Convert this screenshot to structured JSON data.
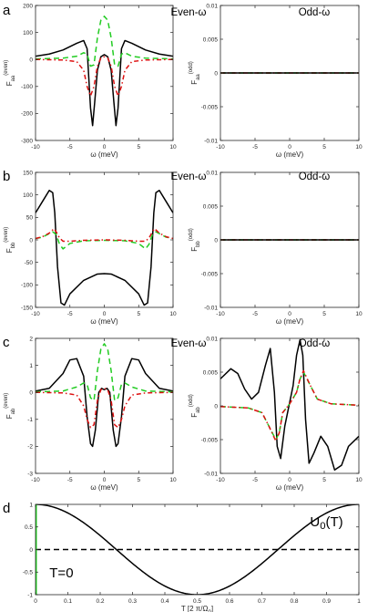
{
  "figure": {
    "panel_letters": [
      "a",
      "b",
      "c",
      "d"
    ],
    "colors": {
      "black": "#000000",
      "green": "#22cc22",
      "red": "#dd1111",
      "green_t0": "#22dd22"
    }
  },
  "chart_data": [
    {
      "id": "a-even",
      "letter": "a",
      "type": "line",
      "title": "Even-ω",
      "ylabel": "F_aa^(even)",
      "xlabel": "ω (meV)",
      "xlim": [
        -10,
        10
      ],
      "ylim": [
        -300,
        200
      ],
      "xticks": [
        -10,
        -5,
        0,
        5,
        10
      ],
      "yticks": [
        -300,
        -200,
        -100,
        0,
        100,
        200
      ],
      "ytick_labels": [
        "-300",
        "-200",
        "-100",
        "0",
        "100",
        "200"
      ],
      "series": [
        {
          "color": "#000000",
          "style": "solid",
          "x": [
            -10,
            -8,
            -6,
            -4,
            -3,
            -2.5,
            -2,
            -1.7,
            -1.4,
            -1,
            -0.5,
            0,
            0.5,
            1,
            1.4,
            1.7,
            2,
            2.5,
            3,
            4,
            6,
            8,
            10
          ],
          "y": [
            12,
            20,
            35,
            60,
            70,
            40,
            -180,
            -245,
            -160,
            -40,
            10,
            18,
            10,
            -40,
            -160,
            -245,
            -180,
            40,
            70,
            60,
            35,
            20,
            12
          ]
        },
        {
          "color": "#22cc22",
          "style": "dashed",
          "x": [
            -10,
            -6,
            -4,
            -3,
            -2.5,
            -2,
            -1.5,
            -1,
            -0.5,
            0,
            0.5,
            1,
            1.5,
            2,
            2.5,
            3,
            4,
            6,
            10
          ],
          "y": [
            2,
            5,
            12,
            25,
            20,
            -25,
            -20,
            80,
            145,
            160,
            145,
            80,
            -20,
            -25,
            20,
            25,
            12,
            5,
            2
          ]
        },
        {
          "color": "#dd1111",
          "style": "dashdot",
          "x": [
            -10,
            -6,
            -4,
            -3,
            -2.5,
            -2,
            -1.5,
            -1,
            -0.5,
            0,
            0.5,
            1,
            1.5,
            2,
            2.5,
            3,
            4,
            6,
            10
          ],
          "y": [
            0,
            -2,
            -8,
            -40,
            -100,
            -135,
            -100,
            -25,
            5,
            10,
            5,
            -25,
            -100,
            -135,
            -100,
            -40,
            -8,
            -2,
            0
          ]
        }
      ]
    },
    {
      "id": "a-odd",
      "type": "line",
      "title": "Odd-ω",
      "ylabel": "F_aa^(odd)",
      "xlabel": "ω (meV)",
      "xlim": [
        -10,
        10
      ],
      "ylim": [
        -0.01,
        0.01
      ],
      "xticks": [
        -10,
        -5,
        0,
        5,
        10
      ],
      "yticks": [
        -0.01,
        -0.005,
        0,
        0.005,
        0.01
      ],
      "ytick_labels": [
        "-0.01",
        "-0.005",
        "0",
        "0.005",
        "0.01"
      ],
      "series": [
        {
          "color": "#22cc22",
          "style": "dashed",
          "x": [
            -10,
            10
          ],
          "y": [
            0,
            0
          ]
        },
        {
          "color": "#dd1111",
          "style": "dashdot",
          "x": [
            -10,
            10
          ],
          "y": [
            0,
            0
          ]
        },
        {
          "color": "#000000",
          "style": "solid",
          "x": [
            -10,
            10
          ],
          "y": [
            0,
            0
          ]
        }
      ]
    },
    {
      "id": "b-even",
      "letter": "b",
      "type": "line",
      "title": "Even-ω",
      "ylabel": "F_bb^(even)",
      "xlabel": "ω (meV)",
      "xlim": [
        -10,
        10
      ],
      "ylim": [
        -150,
        150
      ],
      "xticks": [
        -10,
        -5,
        0,
        5,
        10
      ],
      "yticks": [
        -150,
        -100,
        -50,
        0,
        50,
        100,
        150
      ],
      "ytick_labels": [
        "-150",
        "-100",
        "-50",
        "0",
        "50",
        "100",
        "150"
      ],
      "series": [
        {
          "color": "#000000",
          "style": "solid",
          "x": [
            -10,
            -9,
            -8,
            -7.5,
            -7.2,
            -6.8,
            -6.3,
            -5.8,
            -5,
            -3,
            -1,
            0,
            1,
            3,
            5,
            5.8,
            6.3,
            6.8,
            7.2,
            7.5,
            8,
            9,
            10
          ],
          "y": [
            60,
            85,
            110,
            105,
            60,
            -60,
            -140,
            -145,
            -120,
            -90,
            -76,
            -75,
            -76,
            -90,
            -120,
            -145,
            -140,
            -60,
            60,
            105,
            110,
            85,
            60
          ]
        },
        {
          "color": "#22cc22",
          "style": "dashed",
          "x": [
            -10,
            -9,
            -8,
            -7.5,
            -7,
            -6.5,
            -6,
            -5,
            -3,
            0,
            3,
            5,
            6,
            6.5,
            7,
            7.5,
            8,
            9,
            10
          ],
          "y": [
            3,
            6,
            14,
            18,
            12,
            -10,
            -20,
            -8,
            -2,
            -1,
            -2,
            -8,
            -20,
            -10,
            12,
            18,
            14,
            6,
            3
          ]
        },
        {
          "color": "#dd1111",
          "style": "dashdot",
          "x": [
            -10,
            -9,
            -8,
            -7.3,
            -7,
            -6.5,
            -6,
            -5,
            -3,
            0,
            3,
            5,
            6,
            6.5,
            7,
            7.3,
            8,
            9,
            10
          ],
          "y": [
            3,
            7,
            15,
            25,
            18,
            4,
            -3,
            -3,
            -1,
            0,
            -1,
            -3,
            -3,
            4,
            18,
            25,
            15,
            7,
            3
          ]
        }
      ]
    },
    {
      "id": "b-odd",
      "type": "line",
      "title": "Odd-ω",
      "ylabel": "F_bb^(odd)",
      "xlabel": "ω (meV)",
      "xlim": [
        -10,
        10
      ],
      "ylim": [
        -0.01,
        0.01
      ],
      "xticks": [
        -10,
        -5,
        0,
        5,
        10
      ],
      "yticks": [
        -0.01,
        -0.005,
        0,
        0.005,
        0.01
      ],
      "ytick_labels": [
        "-0.01",
        "-0.005",
        "0",
        "0.005",
        "0.01"
      ],
      "series": [
        {
          "color": "#22cc22",
          "style": "dashed",
          "x": [
            -10,
            10
          ],
          "y": [
            0,
            0
          ]
        },
        {
          "color": "#dd1111",
          "style": "dashdot",
          "x": [
            -10,
            10
          ],
          "y": [
            0,
            0
          ]
        },
        {
          "color": "#000000",
          "style": "solid",
          "x": [
            -10,
            10
          ],
          "y": [
            0,
            0
          ]
        }
      ]
    },
    {
      "id": "c-even",
      "letter": "c",
      "type": "line",
      "title": "Even-ω",
      "ylabel": "F_ab^(even)",
      "xlabel": "ω (meV)",
      "xlim": [
        -10,
        10
      ],
      "ylim": [
        -3,
        2
      ],
      "xticks": [
        -10,
        -5,
        0,
        5,
        10
      ],
      "yticks": [
        -3,
        -2,
        -1,
        0,
        1,
        2
      ],
      "ytick_labels": [
        "-3",
        "-2",
        "-1",
        "0",
        "1",
        "2"
      ],
      "series": [
        {
          "color": "#000000",
          "style": "solid",
          "x": [
            -10,
            -8,
            -6,
            -5,
            -4,
            -3,
            -2.5,
            -2,
            -1.7,
            -1.3,
            -0.8,
            -0.4,
            0,
            0.4,
            0.8,
            1.3,
            1.7,
            2,
            2.5,
            3,
            4,
            5,
            6,
            8,
            10
          ],
          "y": [
            0.05,
            0.15,
            0.7,
            1.2,
            1.25,
            0.6,
            -0.9,
            -1.9,
            -2,
            -1.4,
            0,
            0.15,
            0.1,
            0.15,
            0,
            -1.4,
            -2,
            -1.9,
            -0.9,
            0.6,
            1.25,
            1.2,
            0.7,
            0.15,
            0.05
          ]
        },
        {
          "color": "#22cc22",
          "style": "dashed",
          "x": [
            -10,
            -6,
            -4,
            -3,
            -2.5,
            -2,
            -1.5,
            -1,
            -0.5,
            0,
            0.5,
            1,
            1.5,
            2,
            2.5,
            3,
            4,
            6,
            10
          ],
          "y": [
            0.02,
            0.05,
            0.2,
            0.35,
            0.3,
            -0.2,
            -0.3,
            0.8,
            1.6,
            1.8,
            1.6,
            0.8,
            -0.3,
            -0.2,
            0.3,
            0.35,
            0.2,
            0.05,
            0.02
          ]
        },
        {
          "color": "#dd1111",
          "style": "dashdot",
          "x": [
            -10,
            -6,
            -4,
            -3,
            -2.5,
            -2,
            -1.5,
            -1,
            -0.5,
            0,
            0.5,
            1,
            1.5,
            2,
            2.5,
            3,
            4,
            6,
            10
          ],
          "y": [
            0,
            -0.02,
            -0.1,
            -0.5,
            -1,
            -1.3,
            -1.2,
            -0.3,
            0.1,
            0.15,
            0.1,
            -0.3,
            -1.2,
            -1.3,
            -1,
            -0.5,
            -0.1,
            -0.02,
            0
          ]
        }
      ]
    },
    {
      "id": "c-odd",
      "type": "line",
      "title": "Odd-ω",
      "ylabel": "F_ab^(odd)",
      "xlabel": "ω (meV)",
      "xlim": [
        -10,
        10
      ],
      "ylim": [
        -0.01,
        0.01
      ],
      "xticks": [
        -10,
        -5,
        0,
        5,
        10
      ],
      "yticks": [
        -0.01,
        -0.005,
        0,
        0.005,
        0.01
      ],
      "ytick_labels": [
        "-0.01",
        "-0.005",
        "0",
        "0.005",
        "0.01"
      ],
      "series": [
        {
          "color": "#000000",
          "style": "solid",
          "x": [
            -10,
            -8.5,
            -7.5,
            -6.5,
            -5.5,
            -4.5,
            -3.5,
            -2.8,
            -2.2,
            -1.8,
            -1.3,
            -0.7,
            0,
            0.5,
            1,
            1.5,
            1.9,
            2.3,
            2.8,
            3.5,
            4.5,
            5.5,
            6.5,
            7.5,
            8.5,
            10
          ],
          "y": [
            0.004,
            0.0055,
            0.0048,
            0.0025,
            0.001,
            0.002,
            0.006,
            0.0085,
            0.002,
            -0.006,
            -0.0078,
            -0.003,
            0.0005,
            0.003,
            0.0075,
            0.0098,
            0.0075,
            -0.002,
            -0.0085,
            -0.007,
            -0.0045,
            -0.006,
            -0.0095,
            -0.0088,
            -0.006,
            -0.0045
          ]
        },
        {
          "color": "#22cc22",
          "style": "dashed",
          "x": [
            -10,
            -6,
            -4,
            -3,
            -2,
            -1.5,
            -1,
            0,
            1,
            1.5,
            2,
            3,
            4,
            6,
            10
          ],
          "y": [
            -0.0001,
            -0.0003,
            -0.001,
            -0.003,
            -0.005,
            -0.004,
            -0.001,
            0.0003,
            0.002,
            0.004,
            0.005,
            0.003,
            0.001,
            0.0003,
            0.0001
          ]
        },
        {
          "color": "#dd1111",
          "style": "dashdot",
          "x": [
            -10,
            -6,
            -4,
            -3,
            -2,
            -1.5,
            -1,
            0,
            1,
            1.5,
            2,
            3,
            4,
            6,
            10
          ],
          "y": [
            -0.0001,
            -0.0003,
            -0.001,
            -0.003,
            -0.0052,
            -0.004,
            -0.001,
            0.0003,
            0.002,
            0.004,
            0.0052,
            0.003,
            0.001,
            0.0003,
            0.0001
          ]
        }
      ]
    },
    {
      "id": "d",
      "letter": "d",
      "type": "line",
      "title": "",
      "ylabel": "",
      "xlabel": "T [2 π/Ω_0]",
      "xlim": [
        0,
        1
      ],
      "ylim": [
        -1,
        1
      ],
      "xticks": [
        0,
        0.1,
        0.2,
        0.3,
        0.4,
        0.5,
        0.6,
        0.7,
        0.8,
        0.9,
        1
      ],
      "xtick_labels": [
        "0",
        "0.1",
        "0.2",
        "0.3",
        "0.4",
        "0.5",
        "0.6",
        "0.7",
        "0.8",
        "0.9",
        "1"
      ],
      "yticks": [
        -1,
        -0.5,
        0,
        0.5,
        1
      ],
      "ytick_labels": [
        "-1",
        "-0.5",
        "0",
        "0.5",
        "1"
      ],
      "annotations": [
        {
          "text": "U_0(T)",
          "x": 0.9,
          "y": 0.52
        },
        {
          "text": "T=0",
          "x": 0.08,
          "y": -0.62
        }
      ],
      "series": [
        {
          "color": "#000000",
          "style": "solid",
          "function": "cos(2*pi*T)"
        },
        {
          "color": "#000000",
          "style": "dashed",
          "x": [
            0,
            1
          ],
          "y": [
            0,
            0
          ]
        },
        {
          "color": "#22dd22",
          "style": "solid",
          "x": [
            0,
            0
          ],
          "y": [
            -1,
            1
          ]
        }
      ]
    }
  ]
}
